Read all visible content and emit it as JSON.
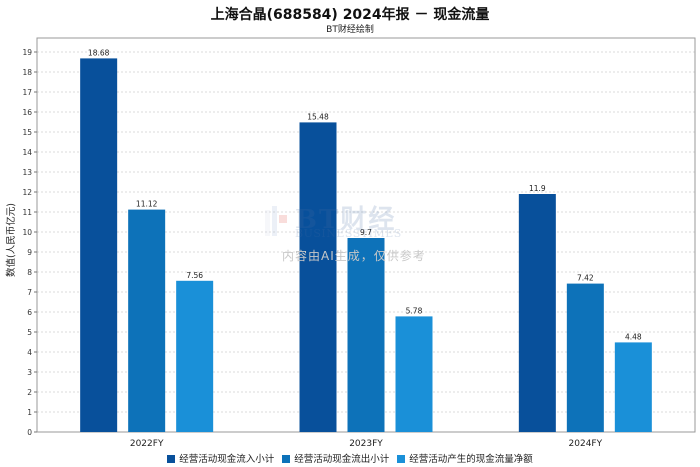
{
  "chart_data": {
    "type": "bar",
    "title": "上海合晶(688584) 2024年报 － 现金流量",
    "subtitle": "BT财经绘制",
    "ylabel": "数值(人民币亿元)",
    "xlabel": "",
    "categories": [
      "2022FY",
      "2023FY",
      "2024FY"
    ],
    "series": [
      {
        "name": "经营活动现金流入小计",
        "values": [
          18.68,
          15.48,
          11.9
        ],
        "labels": [
          "18.68",
          "15.48",
          "11.9"
        ],
        "color": "#08509b"
      },
      {
        "name": "经营活动现金流出小计",
        "values": [
          11.12,
          9.7,
          7.42
        ],
        "labels": [
          "11.12",
          "9.7",
          "7.42"
        ],
        "color": "#0d72b9"
      },
      {
        "name": "经营活动产生的现金流量净额",
        "values": [
          7.56,
          5.78,
          4.48
        ],
        "labels": [
          "7.56",
          "5.78",
          "4.48"
        ],
        "color": "#1a90d8"
      }
    ],
    "ylim": [
      0,
      19.7
    ],
    "yticks": [
      0,
      1,
      2,
      3,
      4,
      5,
      6,
      7,
      8,
      9,
      10,
      11,
      12,
      13,
      14,
      15,
      16,
      17,
      18,
      19
    ],
    "grid": true,
    "legend": "bottom"
  },
  "watermark": {
    "logo": "BT财经",
    "logo_sub": "BUSINESSTIMES",
    "note": "内容由AI生成，仅供参考"
  }
}
